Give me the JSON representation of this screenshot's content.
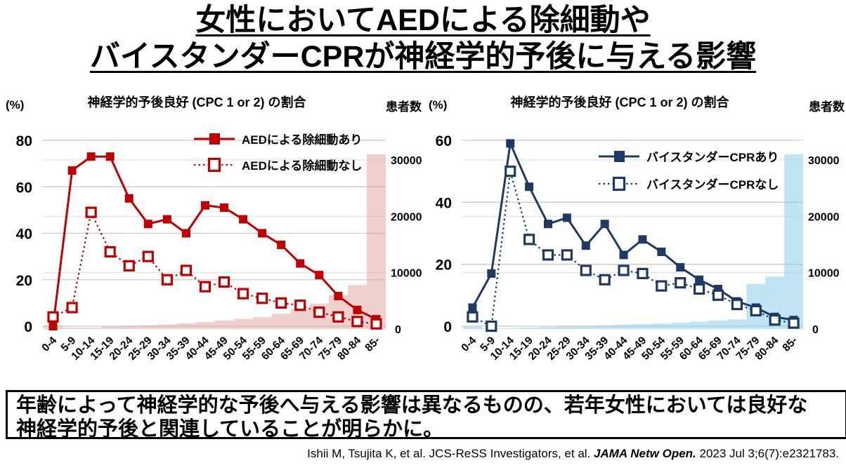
{
  "slide_title": {
    "line1": "女性においてAEDによる除細動や",
    "line2": "バイスタンダーCPRが神経学的予後に与える影響"
  },
  "chart_data": [
    {
      "type": "line",
      "title": "神経学的予後良好 (CPC 1 or 2) の割合",
      "ylabel": "(%)",
      "y2label": "患者数",
      "ylim": [
        0,
        80
      ],
      "yticks": [
        0,
        20,
        40,
        60,
        80
      ],
      "y2lim": [
        0,
        32000
      ],
      "y2ticks": [
        0,
        10000,
        20000,
        30000
      ],
      "grid": true,
      "legend_position": "upper-right-inside",
      "categories": [
        "0-4",
        "5-9",
        "10-14",
        "15-19",
        "20-24",
        "25-29",
        "30-34",
        "35-39",
        "40-44",
        "45-49",
        "50-54",
        "55-59",
        "60-64",
        "65-69",
        "70-74",
        "75-79",
        "80-84",
        "85-"
      ],
      "series": [
        {
          "name": "AEDによる除細動あり",
          "marker": "filled-square",
          "line": "solid",
          "color": "#C00000",
          "values": [
            0,
            67,
            73,
            73,
            55,
            44,
            46,
            40,
            52,
            51,
            46,
            40,
            35,
            27,
            22,
            13,
            7,
            3
          ]
        },
        {
          "name": "AEDによる除細動なし",
          "marker": "open-square",
          "line": "dotted",
          "color": "#C00000",
          "values": [
            4,
            8,
            49,
            32,
            26,
            30,
            20,
            24,
            17,
            19,
            14,
            12,
            10,
            9,
            6,
            4,
            2,
            1
          ]
        }
      ],
      "bars": {
        "name": "患者数",
        "axis": "y2",
        "color": "rgba(224,150,150,0.45)",
        "values": [
          600,
          250,
          250,
          450,
          550,
          650,
          800,
          1000,
          1200,
          1500,
          1800,
          2100,
          2700,
          3500,
          4500,
          6000,
          7800,
          31000
        ]
      }
    },
    {
      "type": "line",
      "title": "神経学的予後良好 (CPC 1 or 2) の割合",
      "ylabel": "(%)",
      "y2label": "患者数",
      "ylim": [
        0,
        60
      ],
      "yticks": [
        0,
        20,
        40,
        60
      ],
      "y2lim": [
        0,
        32000
      ],
      "y2ticks": [
        0,
        10000,
        20000,
        30000
      ],
      "grid": true,
      "legend_position": "upper-right-inside",
      "categories": [
        "0-4",
        "5-9",
        "10-14",
        "15-19",
        "20-24",
        "25-29",
        "30-34",
        "35-39",
        "40-44",
        "45-49",
        "50-54",
        "55-59",
        "60-64",
        "65-69",
        "70-74",
        "75-79",
        "80-84",
        "85-"
      ],
      "series": [
        {
          "name": "バイスタンダーCPRあり",
          "marker": "filled-square",
          "line": "solid",
          "color": "#1F3864",
          "values": [
            6,
            17,
            59,
            45,
            33,
            35,
            26,
            33,
            23,
            28,
            24,
            19,
            15,
            12,
            8,
            6,
            3,
            2
          ]
        },
        {
          "name": "バイスタンダーCPRなし",
          "marker": "open-square",
          "line": "dotted",
          "color": "#1F3864",
          "values": [
            3,
            0,
            50,
            28,
            23,
            23,
            18,
            15,
            18,
            17,
            13,
            14,
            12,
            10,
            7,
            5,
            2,
            1
          ]
        }
      ],
      "bars": {
        "name": "患者数",
        "axis": "y2",
        "color": "rgba(140,205,235,0.55)",
        "values": [
          400,
          150,
          150,
          250,
          350,
          450,
          550,
          650,
          750,
          850,
          950,
          1100,
          1300,
          1500,
          1700,
          8000,
          9300,
          31000
        ]
      }
    }
  ],
  "summary_box": {
    "line1": "年齢によって神経学的な予後へ与える影響は異なるものの、若年女性においては良好な",
    "line2": "神経学的予後と関連していることが明らかに。"
  },
  "citation": {
    "authors": "Ishii M, Tsujita K, et al. JCS-ReSS Investigators, et al. ",
    "journal": "JAMA Netw Open.",
    "detail": " 2023 Jul 3;6(7):e2321783."
  }
}
